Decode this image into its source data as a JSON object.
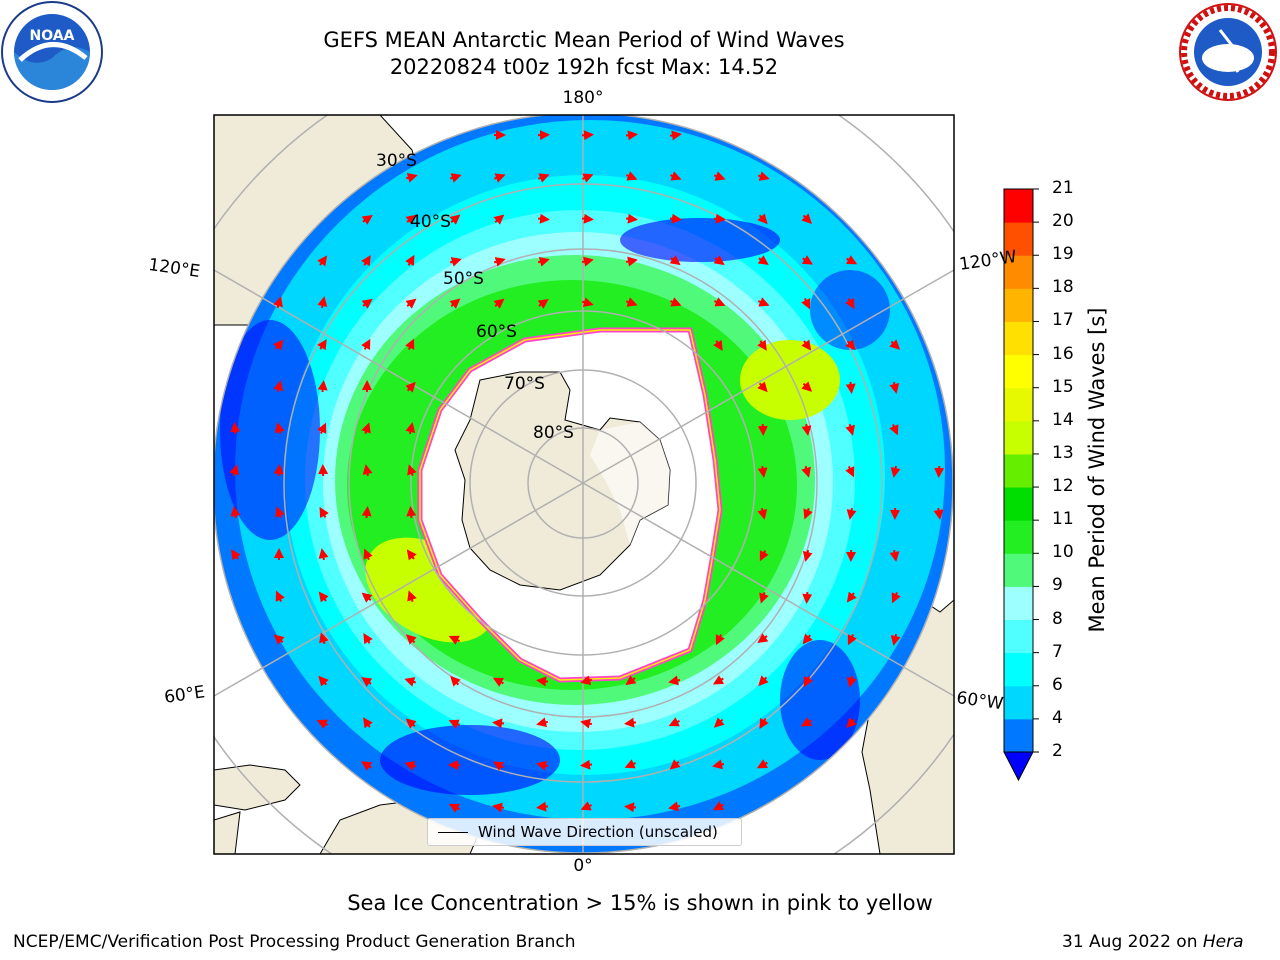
{
  "header": {
    "title_line1": "GEFS MEAN Antarctic Mean Period of Wind Waves",
    "title_line2": "20220824 t00z 192h fcst   Max: 14.52"
  },
  "logos": {
    "left": "noaa-logo",
    "right": "nws-logo"
  },
  "map": {
    "projection": "south-polar-stereographic",
    "longitude_labels": {
      "top": "180°",
      "bottom": "0°",
      "upper_left": "120°E",
      "lower_left": "60°E",
      "upper_right": "120°W",
      "lower_right": "60°W"
    },
    "latitude_labels": [
      "30°S",
      "40°S",
      "50°S",
      "60°S",
      "70°S",
      "80°S"
    ],
    "legend_label": "Wind Wave Direction (unscaled)",
    "colors": {
      "land": "#efebd8",
      "ice_edge_pink": "#ff44cc",
      "ice_edge_yellow": "#ffee00",
      "arrow": "#ff0000",
      "graticule": "#b0b0b0"
    }
  },
  "colorbar": {
    "label": "Mean Period of Wind Waves [s]",
    "ticks": [
      "2",
      "4",
      "6",
      "7",
      "8",
      "9",
      "10",
      "11",
      "12",
      "13",
      "14",
      "15",
      "16",
      "17",
      "18",
      "19",
      "20",
      "21"
    ],
    "colors": [
      "#0078ff",
      "#00d7ff",
      "#00ffff",
      "#50ffff",
      "#9dffff",
      "#50f97a",
      "#22ee22",
      "#00dd00",
      "#66ee00",
      "#c8ff00",
      "#e6f900",
      "#ffff00",
      "#ffe000",
      "#ffb400",
      "#ff8c00",
      "#ff5000",
      "#ff0000"
    ],
    "under_color": "#0000ff"
  },
  "note": "Sea Ice Concentration > 15% is shown in pink to yellow",
  "footer": {
    "left": "NCEP/EMC/Verification Post Processing Product Generation Branch",
    "right_date": "31 Aug 2022 on ",
    "right_host": "Hera"
  }
}
